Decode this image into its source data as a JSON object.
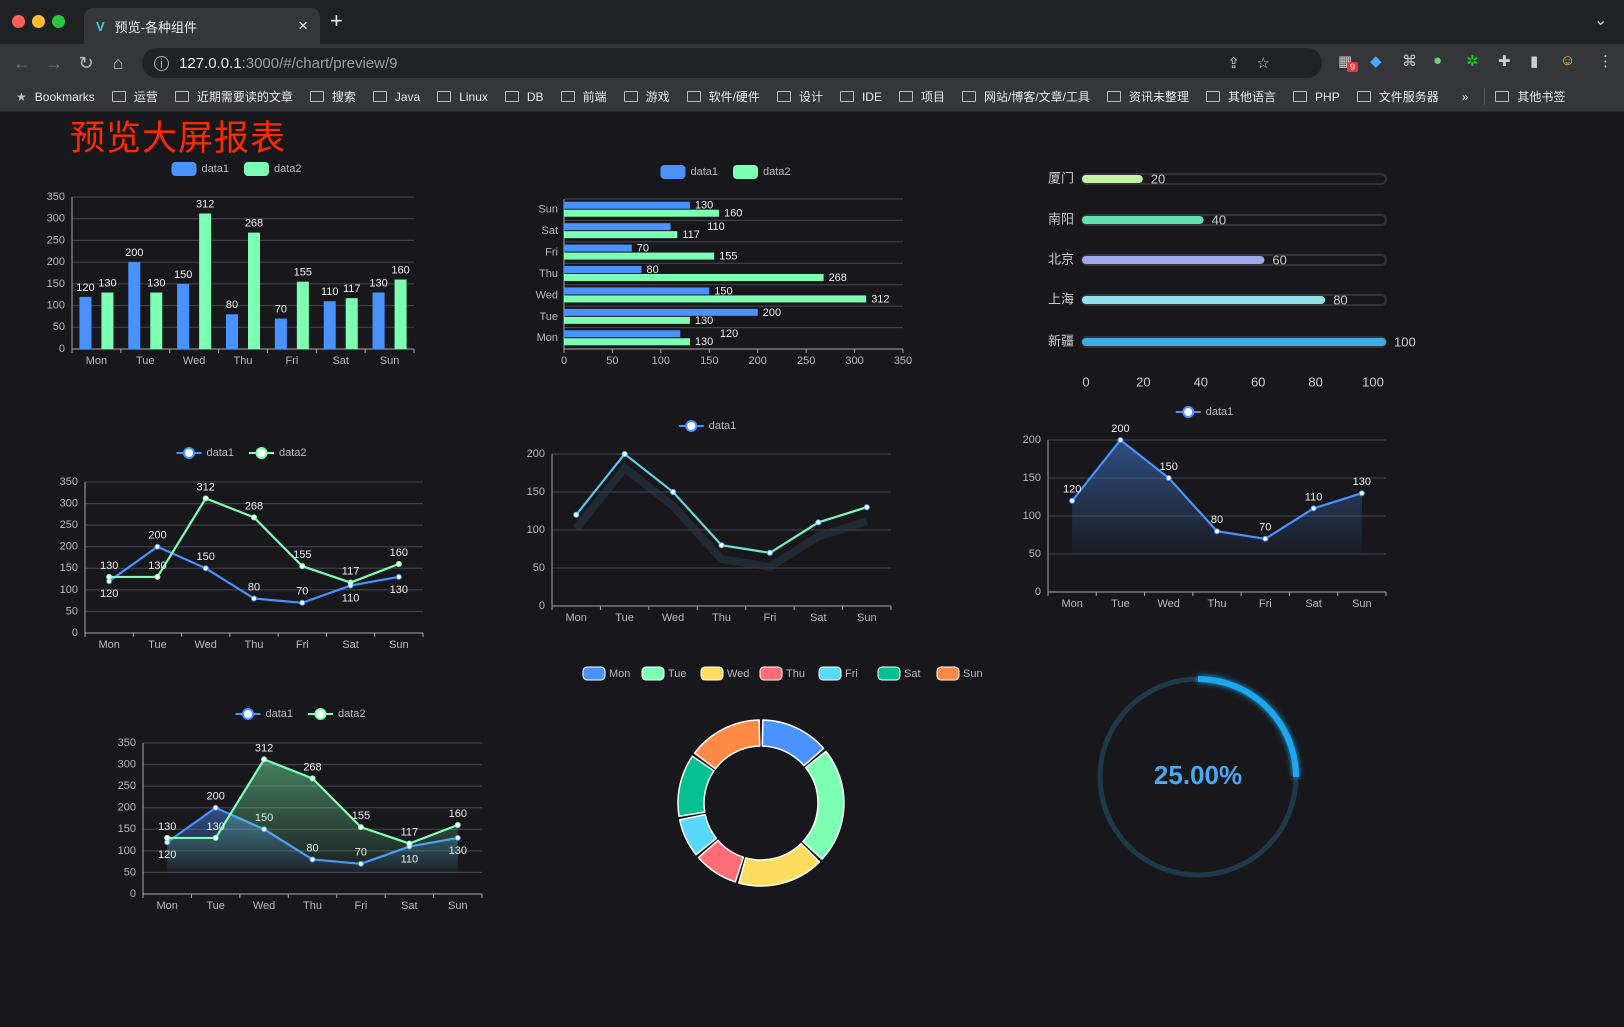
{
  "browser": {
    "tab_title": "预览-各种组件",
    "tab_close": "×",
    "new_tab": "+",
    "tab_list": "⌄",
    "url_host": "127.0.0.1",
    "url_rest": ":3000/#/chart/preview/9",
    "extension_badge": "9",
    "bookmarks_label": "Bookmarks",
    "bookmark_folders": [
      "运营",
      "近期需要读的文章",
      "搜索",
      "Java",
      "Linux",
      "DB",
      "前端",
      "游戏",
      "软件/硬件",
      "设计",
      "IDE",
      "项目",
      "网站/博客/文章/工具",
      "资讯未整理",
      "其他语言",
      "PHP",
      "文件服务器"
    ],
    "more": "»",
    "other_bookmarks": "其他书签"
  },
  "page": {
    "title": "预览大屏报表"
  },
  "colors": {
    "data1": "#4992ff",
    "data2": "#7cffb2",
    "title": "#ff2a00",
    "background": "#18181c"
  },
  "chart_data": [
    {
      "type": "bar",
      "categories": [
        "Mon",
        "Tue",
        "Wed",
        "Thu",
        "Fri",
        "Sat",
        "Sun"
      ],
      "ylim": [
        0,
        350
      ],
      "yticks": [
        0,
        50,
        100,
        150,
        200,
        250,
        300,
        350
      ],
      "legend": "top-center",
      "grid": true,
      "series": [
        {
          "name": "data1",
          "values": [
            120,
            200,
            150,
            80,
            70,
            110,
            130
          ],
          "color": "#4992ff"
        },
        {
          "name": "data2",
          "values": [
            130,
            130,
            312,
            268,
            155,
            117,
            160
          ],
          "color": "#7cffb2"
        }
      ]
    },
    {
      "type": "bar",
      "orientation": "horizontal",
      "categories": [
        "Mon",
        "Tue",
        "Wed",
        "Thu",
        "Fri",
        "Sat",
        "Sun"
      ],
      "xlim": [
        0,
        350
      ],
      "xticks": [
        0,
        50,
        100,
        150,
        200,
        250,
        300,
        350
      ],
      "legend": "top-center",
      "grid": true,
      "series": [
        {
          "name": "data1",
          "values": [
            120,
            200,
            150,
            80,
            70,
            110,
            130
          ],
          "color": "#4992ff"
        },
        {
          "name": "data2",
          "values": [
            130,
            130,
            312,
            268,
            155,
            117,
            160
          ],
          "color": "#7cffb2"
        }
      ]
    },
    {
      "type": "bar",
      "orientation": "horizontal",
      "style": "progress",
      "categories": [
        "厦门",
        "南阳",
        "北京",
        "上海",
        "新疆"
      ],
      "values": [
        20,
        40,
        60,
        80,
        100
      ],
      "colors": [
        "#c8f0a8",
        "#5fe0b0",
        "#a0a8ec",
        "#92e2ea",
        "#3cacE2"
      ],
      "xlim": [
        0,
        100
      ],
      "xticks": [
        0,
        20,
        40,
        60,
        80,
        100
      ]
    },
    {
      "type": "line",
      "categories": [
        "Mon",
        "Tue",
        "Wed",
        "Thu",
        "Fri",
        "Sat",
        "Sun"
      ],
      "ylim": [
        0,
        350
      ],
      "yticks": [
        0,
        50,
        100,
        150,
        200,
        250,
        300,
        350
      ],
      "legend": "top-center",
      "grid": true,
      "series": [
        {
          "name": "data1",
          "values": [
            120,
            200,
            150,
            80,
            70,
            110,
            130
          ],
          "color": "#4992ff"
        },
        {
          "name": "data2",
          "values": [
            130,
            130,
            312,
            268,
            155,
            117,
            160
          ],
          "color": "#7cffb2"
        }
      ]
    },
    {
      "type": "line",
      "categories": [
        "Mon",
        "Tue",
        "Wed",
        "Thu",
        "Fri",
        "Sat",
        "Sun"
      ],
      "ylim": [
        0,
        200
      ],
      "yticks": [
        0,
        50,
        100,
        150,
        200
      ],
      "legend": "top-center",
      "grid": true,
      "series": [
        {
          "name": "data1",
          "values": [
            120,
            200,
            150,
            80,
            70,
            110,
            130
          ],
          "color": "#4992ff",
          "gradient_to": "#7cffb2"
        }
      ]
    },
    {
      "type": "area",
      "categories": [
        "Mon",
        "Tue",
        "Wed",
        "Thu",
        "Fri",
        "Sat",
        "Sun"
      ],
      "ylim": [
        0,
        200
      ],
      "yticks": [
        0,
        50,
        100,
        150,
        200
      ],
      "legend": "top-center",
      "grid": true,
      "series": [
        {
          "name": "data1",
          "values": [
            120,
            200,
            150,
            80,
            70,
            110,
            130
          ],
          "color": "#4992ff"
        }
      ]
    },
    {
      "type": "area",
      "categories": [
        "Mon",
        "Tue",
        "Wed",
        "Thu",
        "Fri",
        "Sat",
        "Sun"
      ],
      "ylim": [
        0,
        350
      ],
      "yticks": [
        0,
        50,
        100,
        150,
        200,
        250,
        300,
        350
      ],
      "legend": "top-center",
      "grid": true,
      "series": [
        {
          "name": "data1",
          "values": [
            120,
            200,
            150,
            80,
            70,
            110,
            130
          ],
          "color": "#4992ff"
        },
        {
          "name": "data2",
          "values": [
            130,
            130,
            312,
            268,
            155,
            117,
            160
          ],
          "color": "#7cffb2"
        }
      ]
    },
    {
      "type": "pie",
      "style": "donut",
      "legend": "top-center",
      "categories": [
        "Mon",
        "Tue",
        "Wed",
        "Thu",
        "Fri",
        "Sat",
        "Sun"
      ],
      "values": [
        120,
        200,
        150,
        80,
        70,
        110,
        130
      ],
      "colors": [
        "#4992ff",
        "#7cffb2",
        "#fddd60",
        "#ff6e76",
        "#58d9f9",
        "#05c091",
        "#ff8a45"
      ]
    },
    {
      "type": "gauge",
      "value": 25,
      "max": 100,
      "label": "25.00%",
      "color": "#1ea8f0"
    }
  ]
}
